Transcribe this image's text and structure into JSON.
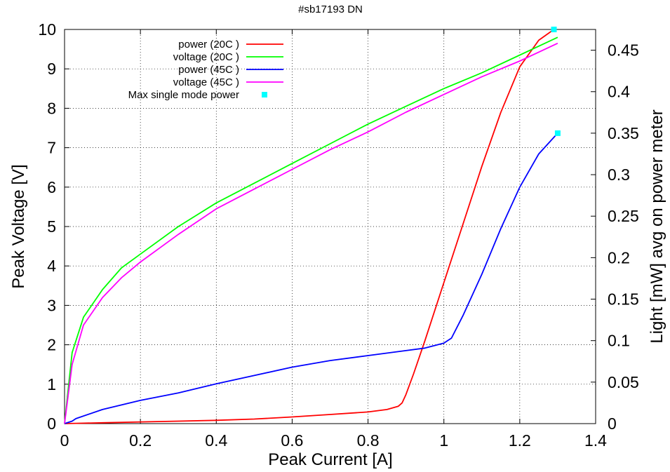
{
  "chart_data": {
    "type": "line",
    "title": "#sb17193 DN",
    "xlabel": "Peak Current [A]",
    "ylabel": "Peak Voltage [V]",
    "y2label": "Light [mW] avg on power meter",
    "xlim": [
      0,
      1.4
    ],
    "ylim": [
      0,
      10
    ],
    "y2lim": [
      0,
      0.475
    ],
    "xticks": [
      "0",
      "0.2",
      "0.4",
      "0.6",
      "0.8",
      "1",
      "1.2",
      "1.4"
    ],
    "yticks": [
      "0",
      "1",
      "2",
      "3",
      "4",
      "5",
      "6",
      "7",
      "8",
      "9",
      "10"
    ],
    "y2ticks": [
      "0",
      "0.05",
      "0.1",
      "0.15",
      "0.2",
      "0.25",
      "0.3",
      "0.35",
      "0.4",
      "0.45"
    ],
    "grid": true,
    "legend_position": "top-left",
    "series": [
      {
        "name": "power (20C )",
        "axis": "y2",
        "color": "#ff0000",
        "x": [
          0,
          0.05,
          0.1,
          0.2,
          0.3,
          0.4,
          0.5,
          0.6,
          0.7,
          0.8,
          0.85,
          0.88,
          0.89,
          0.9,
          0.92,
          0.95,
          1.0,
          1.05,
          1.1,
          1.15,
          1.2,
          1.25,
          1.29
        ],
        "values": [
          0,
          0.0005,
          0.001,
          0.002,
          0.003,
          0.004,
          0.0055,
          0.008,
          0.011,
          0.014,
          0.017,
          0.021,
          0.025,
          0.035,
          0.06,
          0.1,
          0.17,
          0.24,
          0.31,
          0.375,
          0.43,
          0.462,
          0.475
        ]
      },
      {
        "name": "voltage (20C )",
        "axis": "y",
        "color": "#00ff00",
        "x": [
          0,
          0.02,
          0.05,
          0.1,
          0.15,
          0.2,
          0.3,
          0.4,
          0.5,
          0.6,
          0.7,
          0.8,
          0.9,
          1.0,
          1.1,
          1.2,
          1.3
        ],
        "values": [
          0,
          1.8,
          2.7,
          3.4,
          3.95,
          4.3,
          5.0,
          5.6,
          6.1,
          6.6,
          7.1,
          7.6,
          8.05,
          8.5,
          8.9,
          9.35,
          9.8
        ]
      },
      {
        "name": "power (45C )",
        "axis": "y2",
        "color": "#0000ff",
        "x": [
          0,
          0.02,
          0.03,
          0.1,
          0.2,
          0.3,
          0.4,
          0.5,
          0.6,
          0.7,
          0.8,
          0.9,
          0.95,
          1.0,
          1.02,
          1.05,
          1.1,
          1.15,
          1.2,
          1.25,
          1.3
        ],
        "values": [
          0,
          0.003,
          0.006,
          0.017,
          0.028,
          0.037,
          0.048,
          0.058,
          0.068,
          0.076,
          0.082,
          0.088,
          0.091,
          0.097,
          0.103,
          0.13,
          0.18,
          0.235,
          0.285,
          0.325,
          0.35
        ]
      },
      {
        "name": "voltage (45C )",
        "axis": "y",
        "color": "#ff00ff",
        "x": [
          0,
          0.02,
          0.05,
          0.1,
          0.15,
          0.2,
          0.3,
          0.4,
          0.5,
          0.6,
          0.7,
          0.8,
          0.9,
          1.0,
          1.1,
          1.2,
          1.3
        ],
        "values": [
          0,
          1.5,
          2.5,
          3.2,
          3.7,
          4.1,
          4.8,
          5.45,
          5.95,
          6.45,
          6.95,
          7.4,
          7.9,
          8.35,
          8.8,
          9.2,
          9.65
        ]
      },
      {
        "name": "Max single mode power",
        "axis": "y2",
        "color": "#00ffff",
        "marker": "square",
        "x": [
          1.29,
          1.3
        ],
        "values": [
          0.475,
          0.35
        ]
      }
    ]
  }
}
